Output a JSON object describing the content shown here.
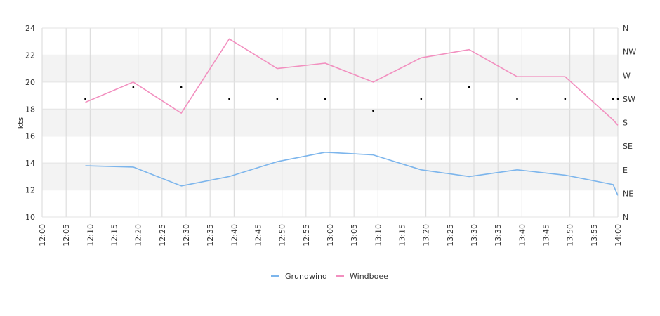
{
  "chart_data": {
    "type": "line",
    "ylabel": "kts",
    "ylim": [
      10,
      24
    ],
    "yticks": [
      "10",
      "12",
      "14",
      "16",
      "18",
      "20",
      "22",
      "24"
    ],
    "y2ticks": [
      "N",
      "NE",
      "E",
      "SE",
      "S",
      "SW",
      "W",
      "NW",
      "N"
    ],
    "xticks": [
      "12:00",
      "12:05",
      "12:10",
      "12:15",
      "12:20",
      "12:25",
      "12:30",
      "12:35",
      "12:40",
      "12:45",
      "12:50",
      "12:55",
      "13:00",
      "13:05",
      "13:10",
      "13:15",
      "13:20",
      "13:25",
      "13:30",
      "13:35",
      "13:40",
      "13:45",
      "13:50",
      "13:55",
      "14:00"
    ],
    "legend_position": "bottom-center",
    "series": [
      {
        "name": "Grundwind",
        "color": "#7cb5ec",
        "points": [
          {
            "x": "12:09",
            "y": 13.8
          },
          {
            "x": "12:19",
            "y": 13.7
          },
          {
            "x": "12:29",
            "y": 12.3
          },
          {
            "x": "12:39",
            "y": 13.0
          },
          {
            "x": "12:49",
            "y": 14.1
          },
          {
            "x": "12:59",
            "y": 14.8
          },
          {
            "x": "13:09",
            "y": 14.6
          },
          {
            "x": "13:19",
            "y": 13.5
          },
          {
            "x": "13:29",
            "y": 13.0
          },
          {
            "x": "13:39",
            "y": 13.5
          },
          {
            "x": "13:49",
            "y": 13.1
          },
          {
            "x": "13:59",
            "y": 12.4
          },
          {
            "x": "14:00",
            "y": 11.6
          }
        ]
      },
      {
        "name": "Windboee",
        "color": "#f28fbf",
        "points": [
          {
            "x": "12:09",
            "y": 18.5
          },
          {
            "x": "12:19",
            "y": 20.0
          },
          {
            "x": "12:29",
            "y": 17.7
          },
          {
            "x": "12:39",
            "y": 23.2
          },
          {
            "x": "12:49",
            "y": 21.0
          },
          {
            "x": "12:59",
            "y": 21.4
          },
          {
            "x": "13:09",
            "y": 20.0
          },
          {
            "x": "13:19",
            "y": 21.8
          },
          {
            "x": "13:29",
            "y": 22.4
          },
          {
            "x": "13:39",
            "y": 20.4
          },
          {
            "x": "13:49",
            "y": 20.4
          },
          {
            "x": "13:59",
            "y": 17.2
          },
          {
            "x": "14:00",
            "y": 16.8
          }
        ]
      }
    ],
    "direction_markers": [
      {
        "x": "12:09",
        "dir": "SW"
      },
      {
        "x": "12:19",
        "dir": "WSW"
      },
      {
        "x": "12:29",
        "dir": "WSW"
      },
      {
        "x": "12:39",
        "dir": "SW"
      },
      {
        "x": "12:49",
        "dir": "SW"
      },
      {
        "x": "12:59",
        "dir": "SW"
      },
      {
        "x": "13:09",
        "dir": "SSW"
      },
      {
        "x": "13:19",
        "dir": "SW"
      },
      {
        "x": "13:29",
        "dir": "WSW"
      },
      {
        "x": "13:39",
        "dir": "SW"
      },
      {
        "x": "13:49",
        "dir": "SW"
      },
      {
        "x": "13:59",
        "dir": "SW"
      },
      {
        "x": "14:00",
        "dir": "SW"
      }
    ]
  }
}
